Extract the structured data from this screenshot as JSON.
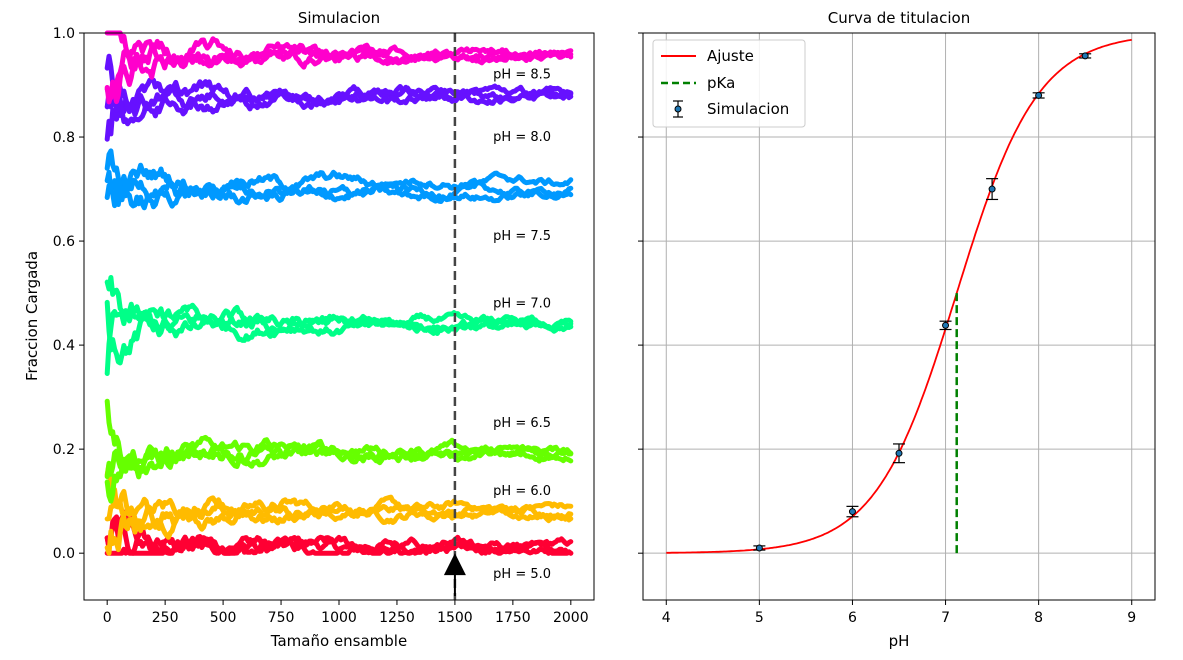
{
  "chart_data": [
    {
      "type": "scatter",
      "title": "Simulacion",
      "xlabel": "Tamaño ensamble",
      "ylabel": "Fraccion Cargada",
      "xlim": [
        -100,
        2100
      ],
      "ylim": [
        -0.09,
        1.0
      ],
      "xticks": [
        "0",
        "250",
        "500",
        "750",
        "1000",
        "1250",
        "1500",
        "1750",
        "2000"
      ],
      "yticks": [
        "0.0",
        "0.2",
        "0.4",
        "0.6",
        "0.8",
        "1.0"
      ],
      "grid": false,
      "vline": 1500,
      "arrow": {
        "x": 1500,
        "y_from": -0.09,
        "y_to": 0.0
      },
      "series": [
        {
          "name": "pH = 5.0",
          "color": "#ff0033",
          "final": [
            0.012,
            0.01,
            0.009
          ]
        },
        {
          "name": "pH = 6.0",
          "color": "#ffbb00",
          "final": [
            0.087,
            0.078,
            0.075
          ]
        },
        {
          "name": "pH = 6.5",
          "color": "#66ff00",
          "final": [
            0.196,
            0.192,
            0.189
          ]
        },
        {
          "name": "pH = 7.0",
          "color": "#00ff88",
          "final": [
            0.442,
            0.438,
            0.436
          ]
        },
        {
          "name": "pH = 7.5",
          "color": "#0099ff",
          "final": [
            0.715,
            0.695,
            0.688
          ]
        },
        {
          "name": "pH = 8.0",
          "color": "#6611ff",
          "final": [
            0.885,
            0.88,
            0.876
          ]
        },
        {
          "name": "pH = 8.5",
          "color": "#ff00cc",
          "final": [
            0.959,
            0.956,
            0.954
          ]
        }
      ],
      "annotations": [
        {
          "text": "pH = 8.5",
          "x": 1665,
          "y": 0.92
        },
        {
          "text": "pH = 8.0",
          "x": 1665,
          "y": 0.8
        },
        {
          "text": "pH = 7.5",
          "x": 1665,
          "y": 0.61
        },
        {
          "text": "pH = 7.0",
          "x": 1665,
          "y": 0.48
        },
        {
          "text": "pH = 6.5",
          "x": 1665,
          "y": 0.25
        },
        {
          "text": "pH = 6.0",
          "x": 1665,
          "y": 0.12
        },
        {
          "text": "pH = 5.0",
          "x": 1665,
          "y": -0.04
        }
      ]
    },
    {
      "type": "line",
      "title": "Curva de titulacion",
      "xlabel": "pH",
      "ylabel": "",
      "xlim": [
        3.75,
        9.25
      ],
      "ylim": [
        -0.09,
        1.0
      ],
      "xticks": [
        "4",
        "5",
        "6",
        "7",
        "8",
        "9"
      ],
      "grid": true,
      "legend": "top-left",
      "fit": {
        "name": "Ajuste",
        "color": "#ff0000",
        "pKa": 7.12,
        "x_range": [
          4,
          9
        ]
      },
      "pKa_line": {
        "name": "pKa",
        "color": "#008000",
        "x": 7.12,
        "y_range": [
          0.0,
          0.5
        ]
      },
      "points": {
        "name": "Simulacion",
        "x": [
          5.0,
          6.0,
          6.5,
          7.0,
          7.5,
          8.0,
          8.5
        ],
        "y": [
          0.01,
          0.08,
          0.192,
          0.438,
          0.7,
          0.88,
          0.956
        ],
        "err": [
          0.004,
          0.01,
          0.018,
          0.008,
          0.02,
          0.005,
          0.004
        ]
      }
    }
  ]
}
